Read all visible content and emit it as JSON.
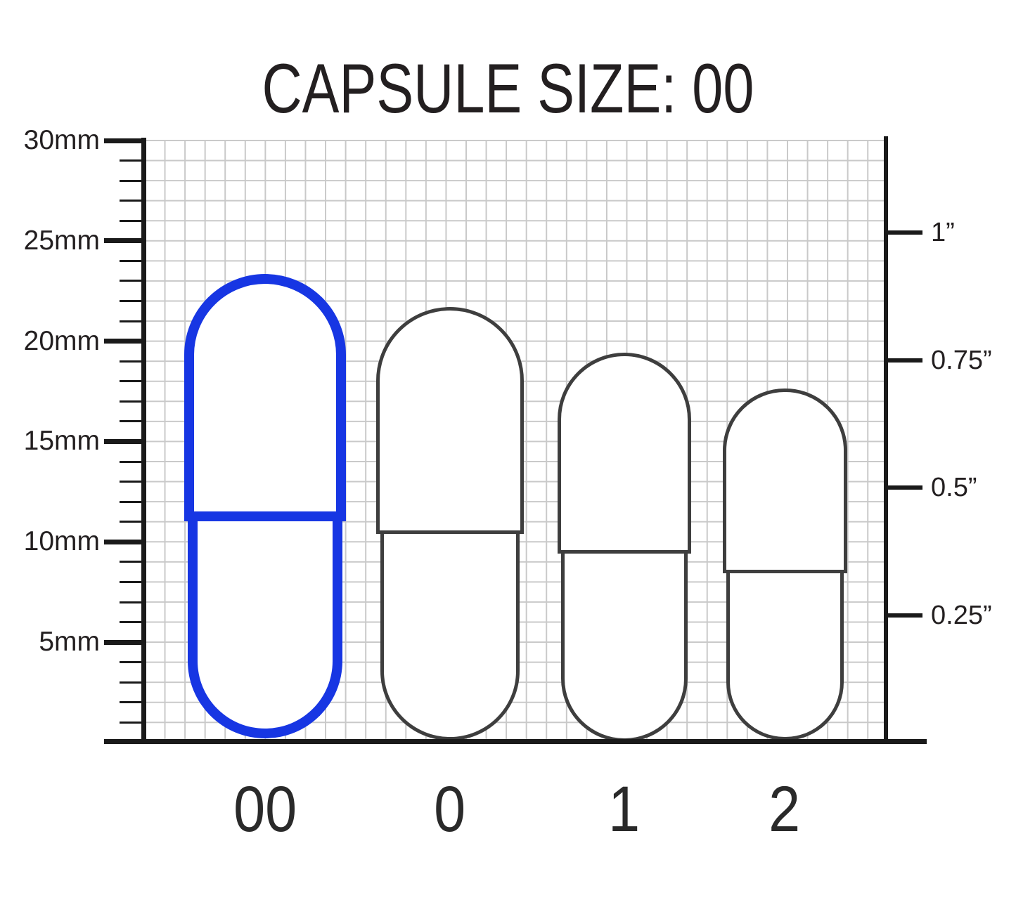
{
  "title": "CAPSULE SIZE: 00",
  "highlighted_size": "00",
  "left_axis": {
    "unit": "mm",
    "labels": [
      "30mm",
      "25mm",
      "20mm",
      "15mm",
      "10mm",
      "5mm"
    ]
  },
  "right_axis": {
    "unit": "inches",
    "labels": [
      "1”",
      "0.75”",
      "0.5”",
      "0.25”"
    ]
  },
  "capsules": [
    {
      "label": "00",
      "highlighted": true,
      "approx_length_mm": 23.3
    },
    {
      "label": "0",
      "highlighted": false,
      "approx_length_mm": 21.7
    },
    {
      "label": "1",
      "highlighted": false,
      "approx_length_mm": 19.4
    },
    {
      "label": "2",
      "highlighted": false,
      "approx_length_mm": 17.6
    }
  ],
  "colors": {
    "highlight_blue": "#1736e3",
    "capsule_outline_gray": "#3e3e3e",
    "axis_black": "#1a1a1a",
    "grid_gray": "#c9c9c9",
    "text_dark": "#231f20"
  }
}
